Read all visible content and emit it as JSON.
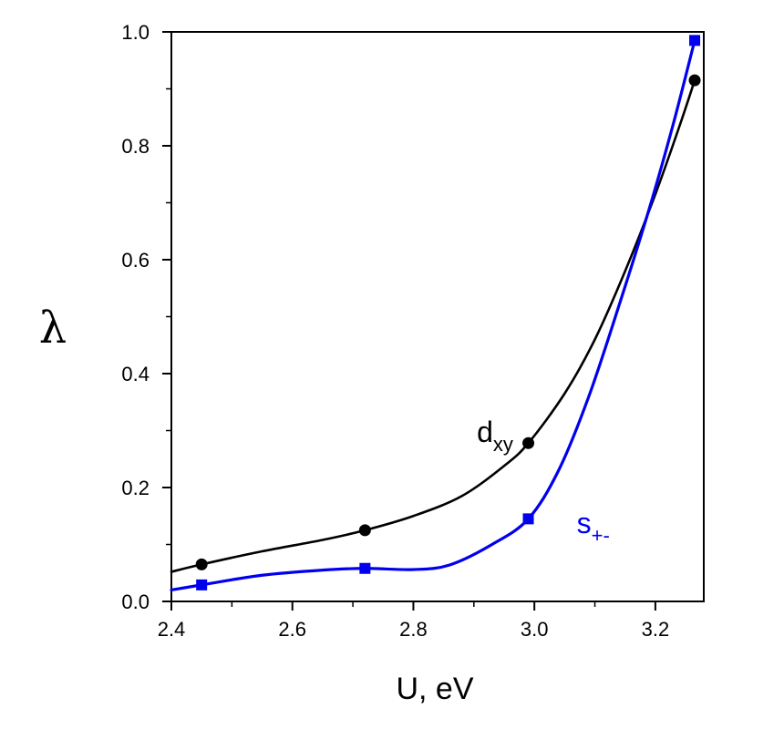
{
  "chart_data": {
    "type": "line",
    "xlabel": "U, eV",
    "ylabel": "λ",
    "xlim": [
      2.4,
      3.28
    ],
    "ylim": [
      0.0,
      1.0
    ],
    "x_ticks": [
      "2.4",
      "2.6",
      "2.8",
      "3.0",
      "3.2"
    ],
    "x_tick_values": [
      2.4,
      2.6,
      2.8,
      3.0,
      3.2
    ],
    "y_ticks": [
      "0.0",
      "0.2",
      "0.4",
      "0.6",
      "0.8",
      "1.0"
    ],
    "y_tick_values": [
      0.0,
      0.2,
      0.4,
      0.6,
      0.8,
      1.0
    ],
    "grid": false,
    "series": [
      {
        "id": "dxy",
        "label_main": "d",
        "label_sub": "xy",
        "color": "#000000",
        "marker": "circle",
        "points": [
          {
            "x": 2.45,
            "y": 0.065
          },
          {
            "x": 2.72,
            "y": 0.125
          },
          {
            "x": 2.99,
            "y": 0.278
          },
          {
            "x": 3.265,
            "y": 0.915
          }
        ],
        "curve": [
          {
            "x": 2.4,
            "y": 0.052
          },
          {
            "x": 2.45,
            "y": 0.065
          },
          {
            "x": 2.55,
            "y": 0.088
          },
          {
            "x": 2.65,
            "y": 0.108
          },
          {
            "x": 2.72,
            "y": 0.125
          },
          {
            "x": 2.8,
            "y": 0.15
          },
          {
            "x": 2.88,
            "y": 0.185
          },
          {
            "x": 2.95,
            "y": 0.238
          },
          {
            "x": 2.99,
            "y": 0.278
          },
          {
            "x": 3.05,
            "y": 0.365
          },
          {
            "x": 3.1,
            "y": 0.46
          },
          {
            "x": 3.15,
            "y": 0.58
          },
          {
            "x": 3.2,
            "y": 0.715
          },
          {
            "x": 3.24,
            "y": 0.835
          },
          {
            "x": 3.265,
            "y": 0.915
          }
        ]
      },
      {
        "id": "s_pm",
        "label_main": "s",
        "label_sub": "+-",
        "color": "#0000ee",
        "marker": "square",
        "points": [
          {
            "x": 2.45,
            "y": 0.029
          },
          {
            "x": 2.72,
            "y": 0.058
          },
          {
            "x": 2.99,
            "y": 0.145
          },
          {
            "x": 3.265,
            "y": 0.985
          }
        ],
        "curve": [
          {
            "x": 2.4,
            "y": 0.02
          },
          {
            "x": 2.45,
            "y": 0.029
          },
          {
            "x": 2.55,
            "y": 0.046
          },
          {
            "x": 2.65,
            "y": 0.055
          },
          {
            "x": 2.72,
            "y": 0.058
          },
          {
            "x": 2.8,
            "y": 0.056
          },
          {
            "x": 2.86,
            "y": 0.064
          },
          {
            "x": 2.93,
            "y": 0.1
          },
          {
            "x": 2.99,
            "y": 0.145
          },
          {
            "x": 3.04,
            "y": 0.23
          },
          {
            "x": 3.09,
            "y": 0.36
          },
          {
            "x": 3.14,
            "y": 0.52
          },
          {
            "x": 3.19,
            "y": 0.69
          },
          {
            "x": 3.23,
            "y": 0.84
          },
          {
            "x": 3.265,
            "y": 0.985
          }
        ]
      }
    ],
    "annotations": [
      {
        "series": "dxy",
        "x": 2.905,
        "y": 0.28
      },
      {
        "series": "s_pm",
        "x": 3.07,
        "y": 0.12
      }
    ]
  }
}
